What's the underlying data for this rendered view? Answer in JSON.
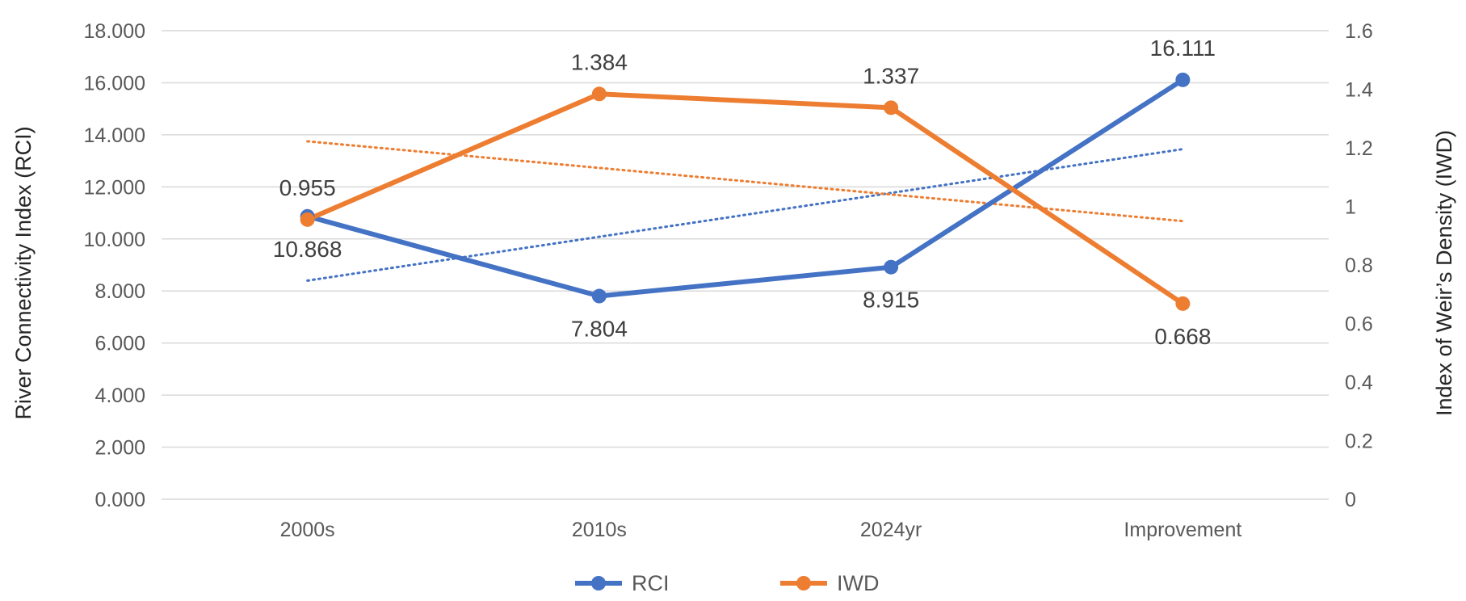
{
  "chart_data": {
    "type": "line",
    "categories": [
      "2000s",
      "2010s",
      "2024yr",
      "Improvement"
    ],
    "series": [
      {
        "name": "RCI",
        "axis": "left",
        "color": "#4472C4",
        "values": [
          10.868,
          7.804,
          8.915,
          16.111
        ],
        "labels": [
          "10.868",
          "7.804",
          "8.915",
          "16.111"
        ],
        "label_positions": [
          "below",
          "below",
          "below",
          "above"
        ],
        "trendline": "linear"
      },
      {
        "name": "IWD",
        "axis": "right",
        "color": "#ED7D31",
        "values": [
          0.955,
          1.384,
          1.337,
          0.668
        ],
        "labels": [
          "0.955",
          "1.384",
          "1.337",
          "0.668"
        ],
        "label_positions": [
          "above",
          "above",
          "above",
          "below"
        ],
        "trendline": "linear"
      }
    ],
    "ylabel": "River Connectivity Index (RCI)",
    "y2label": "Index of Weir’s Density (IWD)",
    "ylim": [
      0,
      18
    ],
    "y2lim": [
      0,
      1.6
    ],
    "yticks": [
      "0.000",
      "2.000",
      "4.000",
      "6.000",
      "8.000",
      "10.000",
      "12.000",
      "14.000",
      "16.000",
      "18.000"
    ],
    "y2ticks": [
      "0",
      "0.2",
      "0.4",
      "0.6",
      "0.8",
      "1",
      "1.2",
      "1.4",
      "1.6"
    ],
    "grid": true,
    "legend": "bottom-center"
  }
}
